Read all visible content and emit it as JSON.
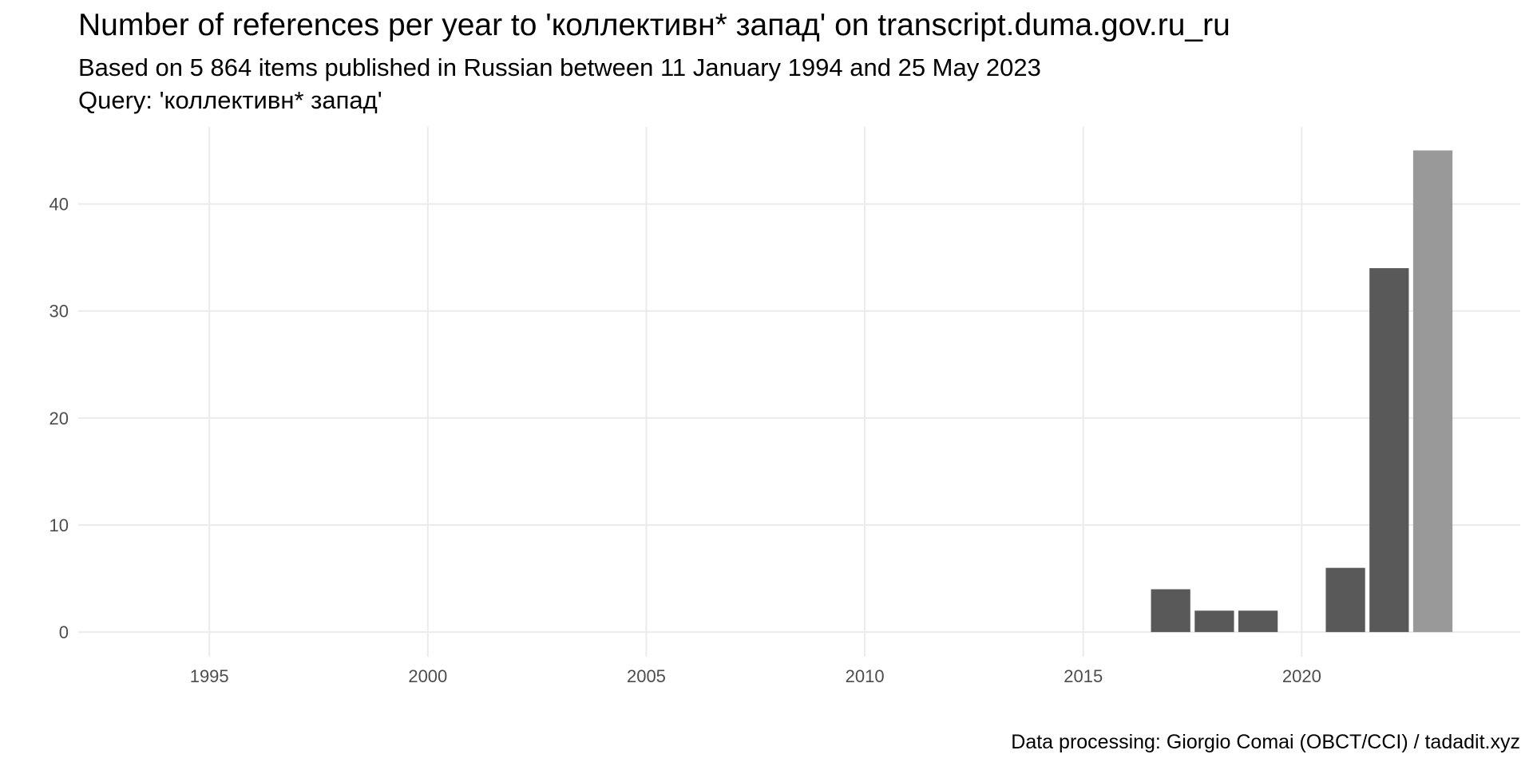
{
  "chart_data": {
    "type": "bar",
    "title": "Number of references per year to 'коллективн* запад' on transcript.duma.gov.ru_ru",
    "subtitle": "Based on 5 864 items published in Russian between 11 January 1994 and 25 May 2023",
    "query": "Query: 'коллективн* запад'",
    "caption": "Data processing: Giorgio Comai (OBCT/CCI) / tadadit.xyz",
    "x": [
      2017,
      2018,
      2019,
      2021,
      2022,
      2023
    ],
    "values": [
      4,
      2,
      2,
      6,
      34,
      45
    ],
    "colors": [
      "#595959",
      "#595959",
      "#595959",
      "#595959",
      "#595959",
      "#999999"
    ],
    "xlim": [
      1992,
      2025
    ],
    "xticks": [
      1995,
      2000,
      2005,
      2010,
      2015,
      2020
    ],
    "ylim": [
      -2.3,
      47.2
    ],
    "yticks": [
      0,
      10,
      20,
      30,
      40
    ],
    "grid": true
  }
}
